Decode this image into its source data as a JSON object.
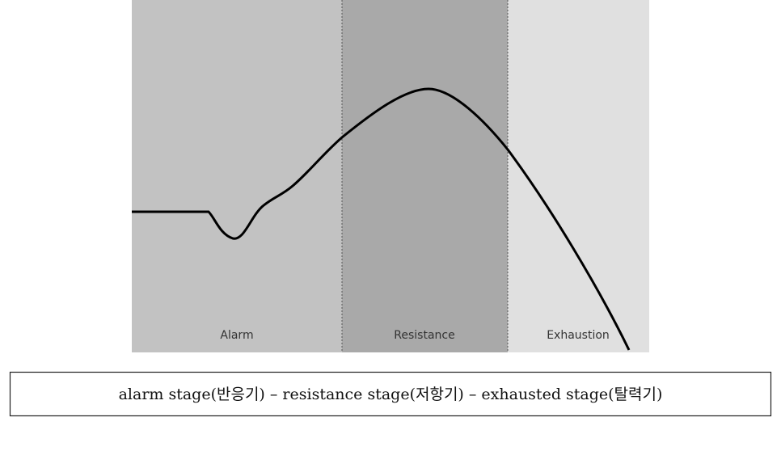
{
  "diagram": {
    "stages": [
      "Alarm",
      "Resistance",
      "Exhaustion"
    ]
  },
  "caption": "alarm stage(반응기) – resistance stage(저항기) – exhausted stage(탈력기)"
}
